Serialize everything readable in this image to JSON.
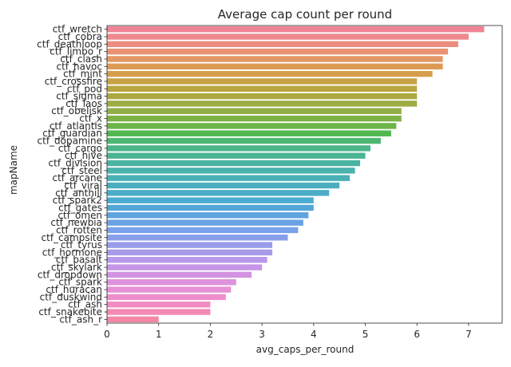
{
  "chart_data": {
    "type": "bar",
    "orientation": "horizontal",
    "title": "Average cap count per round",
    "xlabel": "avg_caps_per_round",
    "ylabel": "mapName",
    "xlim": [
      0,
      7.65
    ],
    "xticks": [
      0,
      1,
      2,
      3,
      4,
      5,
      6,
      7
    ],
    "grid": false,
    "legend": "none",
    "categories": [
      "ctf_wretch",
      "ctf_cobra",
      "ctf_deathloop",
      "ctf_limbo_r",
      "ctf_clash",
      "ctf_havoc",
      "ctf_mint",
      "ctf_crossfire",
      "ctf_pod",
      "ctf_sigma",
      "ctf_laos",
      "ctf_obelisk",
      "ctf_x",
      "ctf_atlantis",
      "ctf_guardian",
      "ctf_dopamine",
      "ctf_cargo",
      "ctf_hive",
      "ctf_division",
      "ctf_steel",
      "ctf_arcane",
      "ctf_viral",
      "ctf_anthill",
      "ctf_spark2",
      "ctf_gates",
      "ctf_omen",
      "ctf_newbia",
      "ctf_rotten",
      "ctf_campsite",
      "ctf_tyrus",
      "ctf_hormone",
      "ctf_basalt",
      "ctf_skylark",
      "ctf_dropdown",
      "ctf_spark",
      "ctf_huracan",
      "ctf_duskwind",
      "ctf_ash",
      "ctf_snakebite",
      "ctf_ash_r"
    ],
    "values": [
      7.3,
      7.0,
      6.8,
      6.6,
      6.5,
      6.5,
      6.3,
      6.0,
      6.0,
      6.0,
      6.0,
      5.7,
      5.7,
      5.6,
      5.5,
      5.3,
      5.1,
      5.0,
      4.9,
      4.8,
      4.7,
      4.5,
      4.3,
      4.0,
      4.0,
      3.9,
      3.8,
      3.7,
      3.5,
      3.2,
      3.2,
      3.1,
      3.0,
      2.8,
      2.5,
      2.4,
      2.3,
      2.0,
      2.0,
      1.0
    ],
    "palette": "husl",
    "colors": [
      "#f08395",
      "#ee8a8d",
      "#ec8e7f",
      "#e99373",
      "#e39764",
      "#dc9b54",
      "#d69e4c",
      "#c7a245",
      "#b9a540",
      "#aca842",
      "#9eac44",
      "#8fae45",
      "#7fb246",
      "#6bb549",
      "#50b84e",
      "#4db772",
      "#4db58a",
      "#4cb496",
      "#4bb3a2",
      "#4ab2ad",
      "#4ab0b6",
      "#4aaebe",
      "#4badc7",
      "#4aabd0",
      "#52a6d8",
      "#5ea4df",
      "#6ba2e4",
      "#78a1ea",
      "#879eea",
      "#999ce9",
      "#a99ae9",
      "#b898e8",
      "#c595e6",
      "#d294e2",
      "#de92dc",
      "#e790d5",
      "#ed8ecb",
      "#f08cc2",
      "#f38ab3",
      "#f387a5"
    ]
  }
}
